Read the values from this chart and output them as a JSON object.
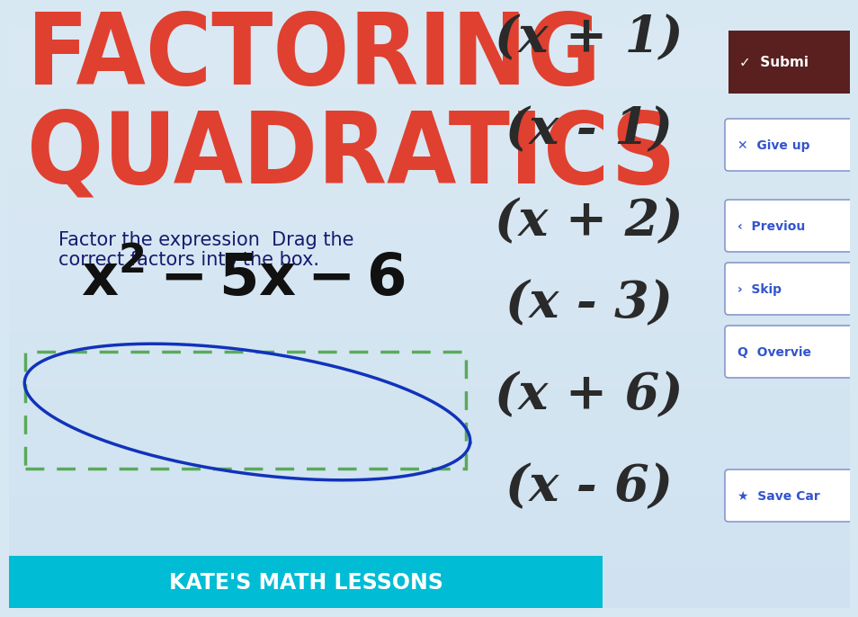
{
  "bg_color": "#d8e8f2",
  "title_line1": "FACTORING",
  "title_line2": "QUADRATICS",
  "title_color": "#e04030",
  "subtitle1": "Factor the expression  Drag the",
  "subtitle2": "correct factors into the box.",
  "subtitle_color": "#1a1a6e",
  "expression": "$x^2 - 5x - 6$",
  "expression_color": "#111111",
  "factors": [
    "(x + 1)",
    "(x - 1)",
    "(x + 2)",
    "(x - 3)",
    "(x + 6)",
    "(x - 6)"
  ],
  "factors_color": "#2a2a2a",
  "footer_text": "KATE'S MATH LESSONS",
  "footer_bg": "#00bcd4",
  "footer_color": "#ffffff",
  "dashed_box_color": "#5aaa5a",
  "ellipse_color": "#1133bb",
  "submit_bg": "#5a2020",
  "submit_text": "✓  Submi",
  "give_up_text": "✕  Give up",
  "previous_text": "‹  Previou",
  "skip_text": "›  Skip",
  "overview_text": "Q  Overvie",
  "save_text": "★  Save Car",
  "right_btn_color": "#3355cc"
}
